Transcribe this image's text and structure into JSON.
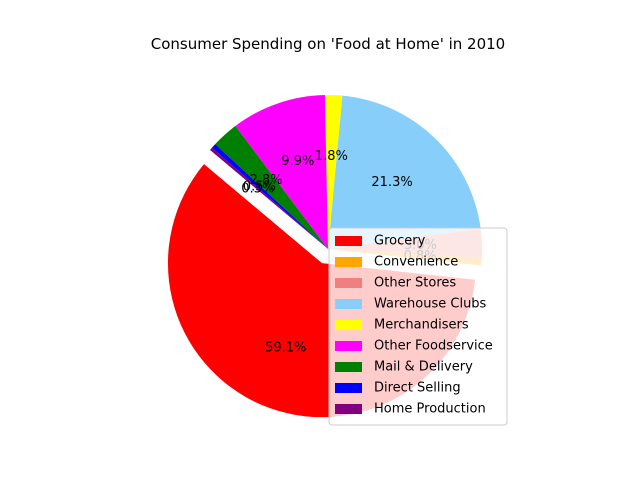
{
  "chart_data": {
    "type": "pie",
    "title": "Consumer Spending on 'Food at Home' in 2010",
    "legend_placement": "lower-right",
    "start_angle_deg": 140,
    "direction": "counterclockwise",
    "slices": [
      {
        "label": "Grocery",
        "value": 59.1,
        "pct_label": "59.1%",
        "color": "#ff0000",
        "exploded": true
      },
      {
        "label": "Convenience",
        "value": 0.8,
        "pct_label": "0.8%",
        "color": "#ffa500",
        "exploded": false
      },
      {
        "label": "Other Stores",
        "value": 3.0,
        "pct_label": "3.0%",
        "color": "#f08080",
        "exploded": false
      },
      {
        "label": "Warehouse Clubs",
        "value": 21.3,
        "pct_label": "21.3%",
        "color": "#87cefa",
        "exploded": false
      },
      {
        "label": "Merchandisers",
        "value": 1.8,
        "pct_label": "1.8%",
        "color": "#ffff00",
        "exploded": false
      },
      {
        "label": "Other Foodservice",
        "value": 9.9,
        "pct_label": "9.9%",
        "color": "#ff00ff",
        "exploded": false
      },
      {
        "label": "Mail & Delivery",
        "value": 2.8,
        "pct_label": "2.8%",
        "color": "#008000",
        "exploded": false
      },
      {
        "label": "Direct Selling",
        "value": 0.5,
        "pct_label": "0.5%",
        "color": "#0000ff",
        "exploded": false
      },
      {
        "label": "Home Production",
        "value": 0.3,
        "pct_label": "0.3%",
        "color": "#800080",
        "exploded": false
      }
    ]
  }
}
